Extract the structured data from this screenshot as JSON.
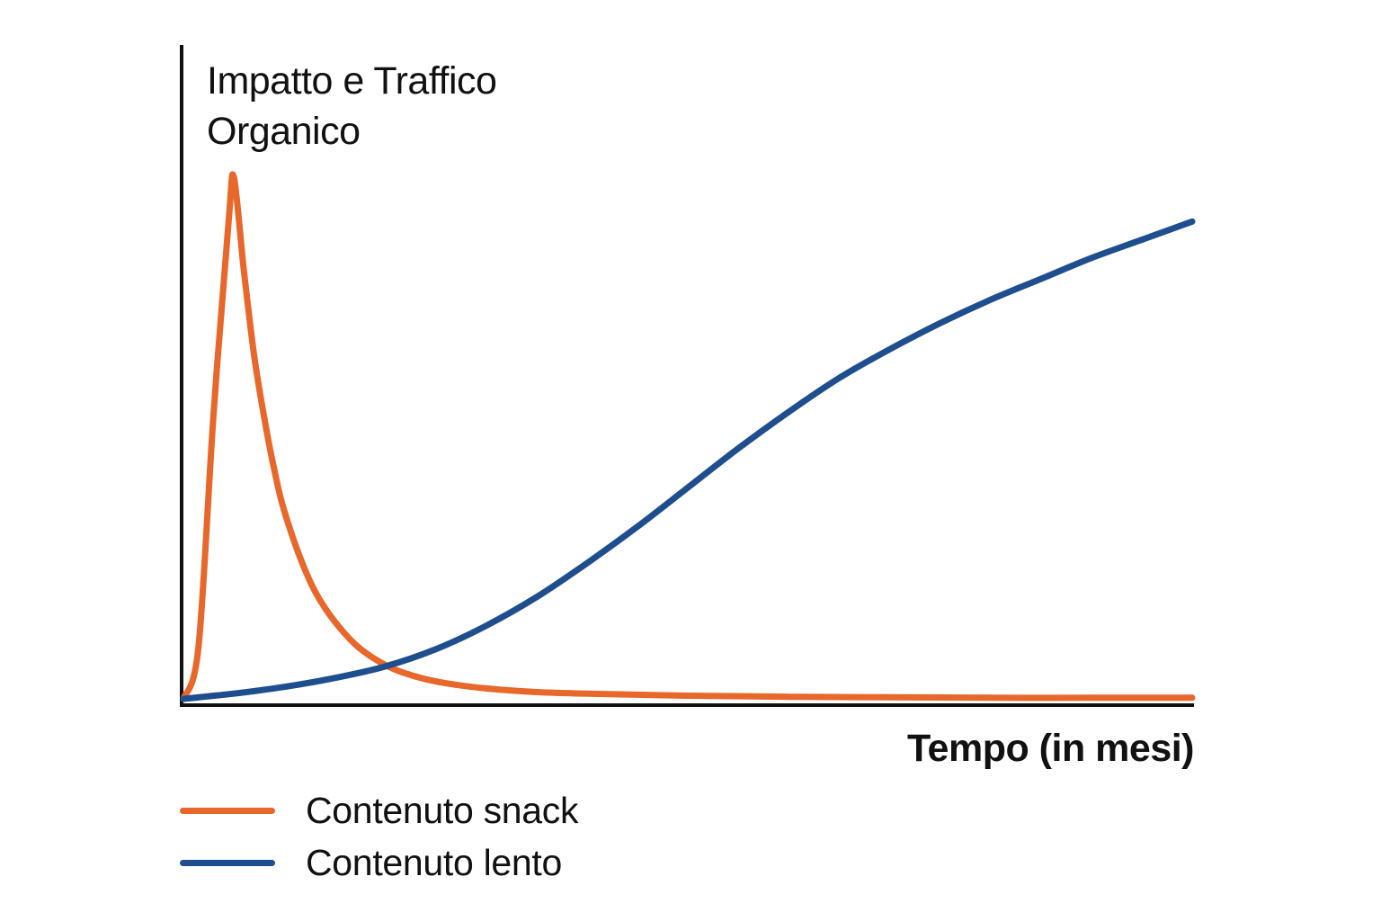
{
  "chart_data": {
    "type": "line",
    "title": "",
    "ylabel": "Impatto e Traffico\nOrganico",
    "xlabel": "Tempo (in mesi)",
    "xlim": [
      0,
      100
    ],
    "ylim": [
      0,
      100
    ],
    "grid": false,
    "legend_position": "bottom-left",
    "series": [
      {
        "name": "Contenuto snack",
        "color": "#E8672A",
        "x": [
          0,
          1.5,
          3,
          4.5,
          5,
          6,
          7,
          8,
          9,
          10,
          12,
          14,
          17,
          20,
          23,
          26,
          30,
          35,
          40,
          50,
          60,
          70,
          80,
          90,
          100
        ],
        "y": [
          0,
          10,
          55,
          92,
          100,
          82,
          66,
          54,
          44,
          36,
          25,
          17.5,
          10.5,
          6.5,
          4.3,
          3,
          2,
          1.3,
          1,
          0.6,
          0.4,
          0.3,
          0.2,
          0.2,
          0.2
        ]
      },
      {
        "name": "Contenuto lento",
        "color": "#1F4E8F",
        "x": [
          0,
          5,
          10,
          15,
          20,
          25,
          30,
          35,
          40,
          45,
          50,
          55,
          60,
          65,
          70,
          75,
          80,
          85,
          90,
          95,
          100
        ],
        "y": [
          0,
          1,
          2.3,
          4,
          6.2,
          9.5,
          14,
          19.5,
          26,
          33,
          40.5,
          48,
          55,
          61.5,
          67,
          72,
          76.5,
          80.5,
          84.5,
          88,
          91.5
        ]
      }
    ]
  }
}
